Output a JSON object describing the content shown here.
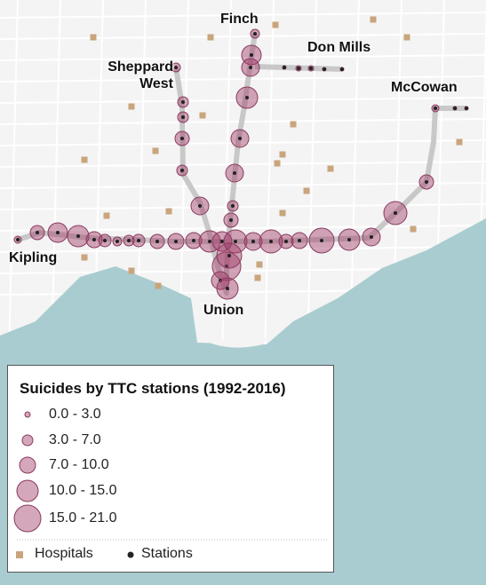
{
  "map": {
    "labels": {
      "finch": "Finch",
      "don_mills": "Don Mills",
      "sheppard_west": "Sheppard West",
      "mccowan": "McCowan",
      "kipling": "Kipling",
      "union": "Union"
    },
    "legend": {
      "title": "Suicides by TTC stations (1992-2016)",
      "classes": [
        "0.0 - 3.0",
        "3.0 - 7.0",
        "7.0 - 10.0",
        "10.0 - 15.0",
        "15.0 - 21.0"
      ],
      "hospitals": "Hospitals",
      "stations": "Stations"
    }
  }
}
